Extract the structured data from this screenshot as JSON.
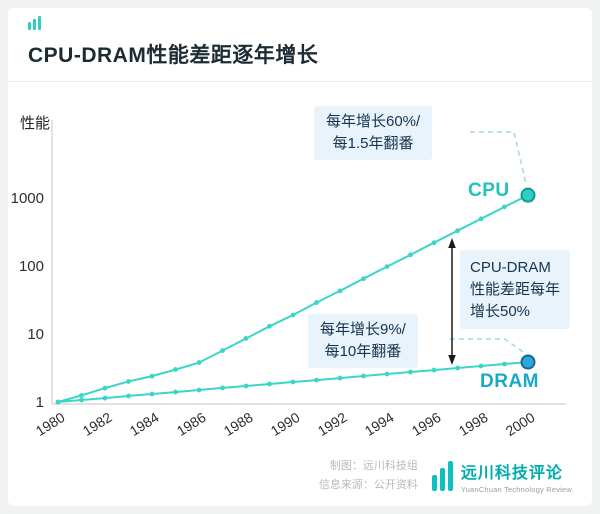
{
  "window": {
    "bg": "#f0f1f1",
    "card_bg": "#ffffff"
  },
  "header": {
    "title": "CPU-DRAM性能差距逐年增长"
  },
  "chart_data": {
    "type": "line",
    "title": "CPU-DRAM性能差距逐年增长",
    "ylabel": "性能",
    "y_scale": "log",
    "y_ticks": [
      1,
      10,
      100,
      1000
    ],
    "ylim": [
      1,
      1200
    ],
    "grid": false,
    "legend": "none",
    "years": [
      1980,
      1981,
      1982,
      1983,
      1984,
      1985,
      1986,
      1987,
      1988,
      1989,
      1990,
      1991,
      1992,
      1993,
      1994,
      1995,
      1996,
      1997,
      1998,
      1999,
      2000
    ],
    "x_tick_years": [
      1980,
      1982,
      1984,
      1986,
      1988,
      1990,
      1992,
      1994,
      1996,
      1998,
      2000
    ],
    "series": [
      {
        "name": "CPU",
        "color": "#3bd6c6",
        "end_fill": "#2fd0c0",
        "end_stroke": "#0f9a90",
        "values": [
          1,
          1.25,
          1.6,
          2,
          2.4,
          3,
          3.8,
          5.7,
          8.6,
          13,
          19,
          29,
          43,
          65,
          98,
          146,
          220,
          330,
          494,
          741,
          1100
        ]
      },
      {
        "name": "DRAM",
        "color": "#3bd6c6",
        "end_fill": "#2da6d8",
        "end_stroke": "#13679d",
        "values": [
          1,
          1.07,
          1.14,
          1.23,
          1.31,
          1.4,
          1.5,
          1.61,
          1.72,
          1.84,
          1.97,
          2.1,
          2.25,
          2.41,
          2.58,
          2.76,
          2.95,
          3.16,
          3.38,
          3.62,
          3.87
        ]
      }
    ],
    "annotations": [
      {
        "text": "每年增长60%/每1.5年翻番",
        "target": "CPU"
      },
      {
        "text": "每年增长9%/每10年翻番",
        "target": "DRAM"
      },
      {
        "text": "CPU-DRAM性能差距每年增长50%",
        "target": "gap",
        "arrow": "double-headed"
      }
    ]
  },
  "labels": {
    "cpu": "CPU",
    "dram": "DRAM",
    "cpu_note_line1": "每年增长60%/",
    "cpu_note_line2": "每1.5年翻番",
    "dram_note_line1": "每年增长9%/",
    "dram_note_line2": "每10年翻番",
    "gap_line1": "CPU-DRAM",
    "gap_line2": "性能差距每年",
    "gap_line3": "增长50%"
  },
  "footer": {
    "credit": "制图：远川科技组",
    "source": "信息来源：公开资料",
    "brand": "远川科技评论",
    "brand_sub": "YuanChuan Technology Review"
  }
}
